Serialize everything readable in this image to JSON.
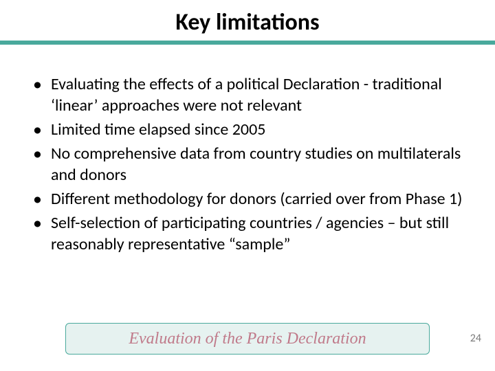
{
  "title": {
    "text": "Key limitations",
    "color": "#000000",
    "fontsize": 34
  },
  "divider": {
    "color": "#49a99c"
  },
  "bullets": {
    "fontsize": 24,
    "lineheight": 31,
    "color": "#000000",
    "items": [
      "Evaluating the effects of a political Declaration - traditional ‘linear’ approaches were not relevant",
      "Limited time elapsed since 2005",
      "No comprehensive data from country studies on multilaterals and donors",
      "Different methodology for donors (carried over from Phase 1)",
      "Self-selection of participating countries / agencies – but still reasonably representative “sample”"
    ]
  },
  "footer": {
    "band_background": "#e6f2f0",
    "band_border": "#49a99c",
    "text": "Evaluation of the Paris Declaration",
    "text_color": "#c07a8a",
    "fontsize": 24
  },
  "page_number": {
    "value": "24",
    "color": "#7a7a7a",
    "fontsize": 16
  },
  "background_color": "#ffffff"
}
